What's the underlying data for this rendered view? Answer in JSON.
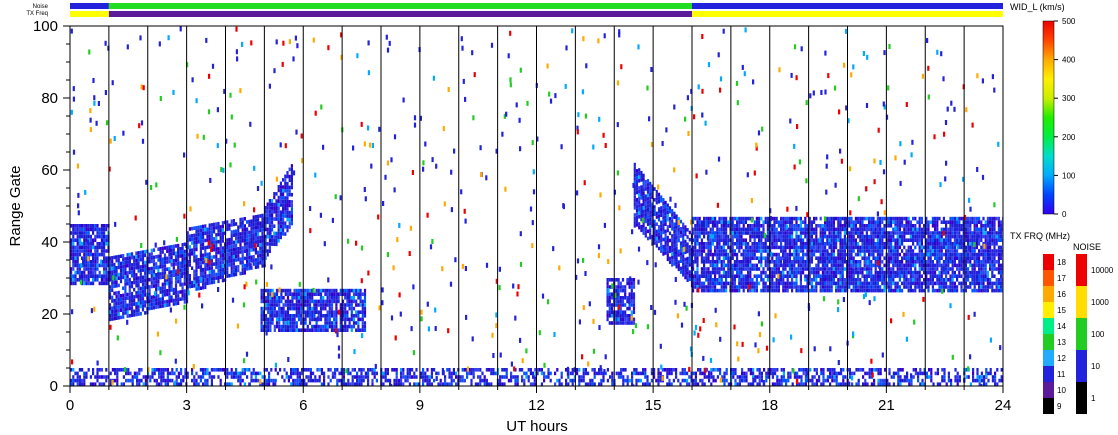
{
  "chart_data": {
    "type": "scatter",
    "title": "",
    "xlabel": "UT hours",
    "ylabel": "Range Gate",
    "xlim": [
      0,
      24
    ],
    "ylim": [
      0,
      100
    ],
    "xticks": [
      0,
      3,
      6,
      9,
      12,
      15,
      18,
      21,
      24
    ],
    "yticks": [
      0,
      20,
      40,
      60,
      80,
      100
    ],
    "scan_boundaries_hours": [
      1,
      2,
      3,
      4,
      5,
      6,
      7,
      8,
      9,
      10,
      11,
      12,
      13,
      14,
      15,
      16,
      17,
      18,
      19,
      20,
      21,
      22,
      23
    ],
    "top_bars": {
      "noise_label": "Noise",
      "txfreq_label": "TX Freq",
      "noise_segments": [
        {
          "start": 0,
          "end": 1,
          "color": "#2222dd"
        },
        {
          "start": 1,
          "end": 16,
          "color": "#22dd22"
        },
        {
          "start": 16,
          "end": 24,
          "color": "#2222dd"
        }
      ],
      "txfreq_segments": [
        {
          "start": 0,
          "end": 1,
          "color": "#ffff00"
        },
        {
          "start": 1,
          "end": 16,
          "color": "#5a1a9a"
        },
        {
          "start": 16,
          "end": 24,
          "color": "#ffff00"
        }
      ]
    },
    "echo_regions": [
      {
        "name": "band-00-01",
        "x": [
          0.0,
          1.0
        ],
        "y": [
          28,
          45
        ]
      },
      {
        "name": "band-01-03",
        "x": [
          1.0,
          3.0
        ],
        "y_start": [
          18,
          36
        ],
        "y_end": [
          24,
          40
        ]
      },
      {
        "name": "band-03-05",
        "x": [
          3.0,
          5.0
        ],
        "y_start": [
          26,
          44
        ],
        "y_end": [
          34,
          48
        ]
      },
      {
        "name": "band-05-06",
        "x": [
          5.0,
          5.7
        ],
        "y_start": [
          36,
          50
        ],
        "y_end": [
          45,
          62
        ]
      },
      {
        "name": "patch-06",
        "x": [
          4.9,
          7.6
        ],
        "y": [
          15,
          27
        ]
      },
      {
        "name": "patch-14",
        "x": [
          13.8,
          14.5
        ],
        "y": [
          17,
          30
        ]
      },
      {
        "name": "band-15-16",
        "x": [
          14.5,
          16.0
        ],
        "y_start": [
          45,
          62
        ],
        "y_end": [
          28,
          42
        ]
      },
      {
        "name": "band-16-24",
        "x": [
          16.0,
          24.0
        ],
        "y": [
          26,
          47
        ]
      },
      {
        "name": "ground-0-24",
        "x": [
          0.0,
          24.0
        ],
        "y": [
          0,
          5
        ]
      }
    ],
    "colorbars": [
      {
        "title": "WID_L (km/s)",
        "ticks": [
          0,
          100,
          200,
          300,
          400,
          500
        ]
      },
      {
        "title": "TX FRQ (MHz)",
        "ticks": [
          9,
          10,
          11,
          12,
          13,
          14,
          15,
          16,
          17,
          18
        ],
        "colors": [
          "#000000",
          "#5a1a9a",
          "#2222dd",
          "#22aaff",
          "#22cc22",
          "#00ee88",
          "#ffee00",
          "#ffaa00",
          "#ff5500",
          "#ee0000"
        ]
      },
      {
        "title": "NOISE",
        "ticks": [
          1,
          10,
          100,
          1000,
          10000
        ],
        "colors": [
          "#000000",
          "#2222dd",
          "#22cc22",
          "#ffdd00",
          "#ee0000"
        ]
      }
    ]
  }
}
